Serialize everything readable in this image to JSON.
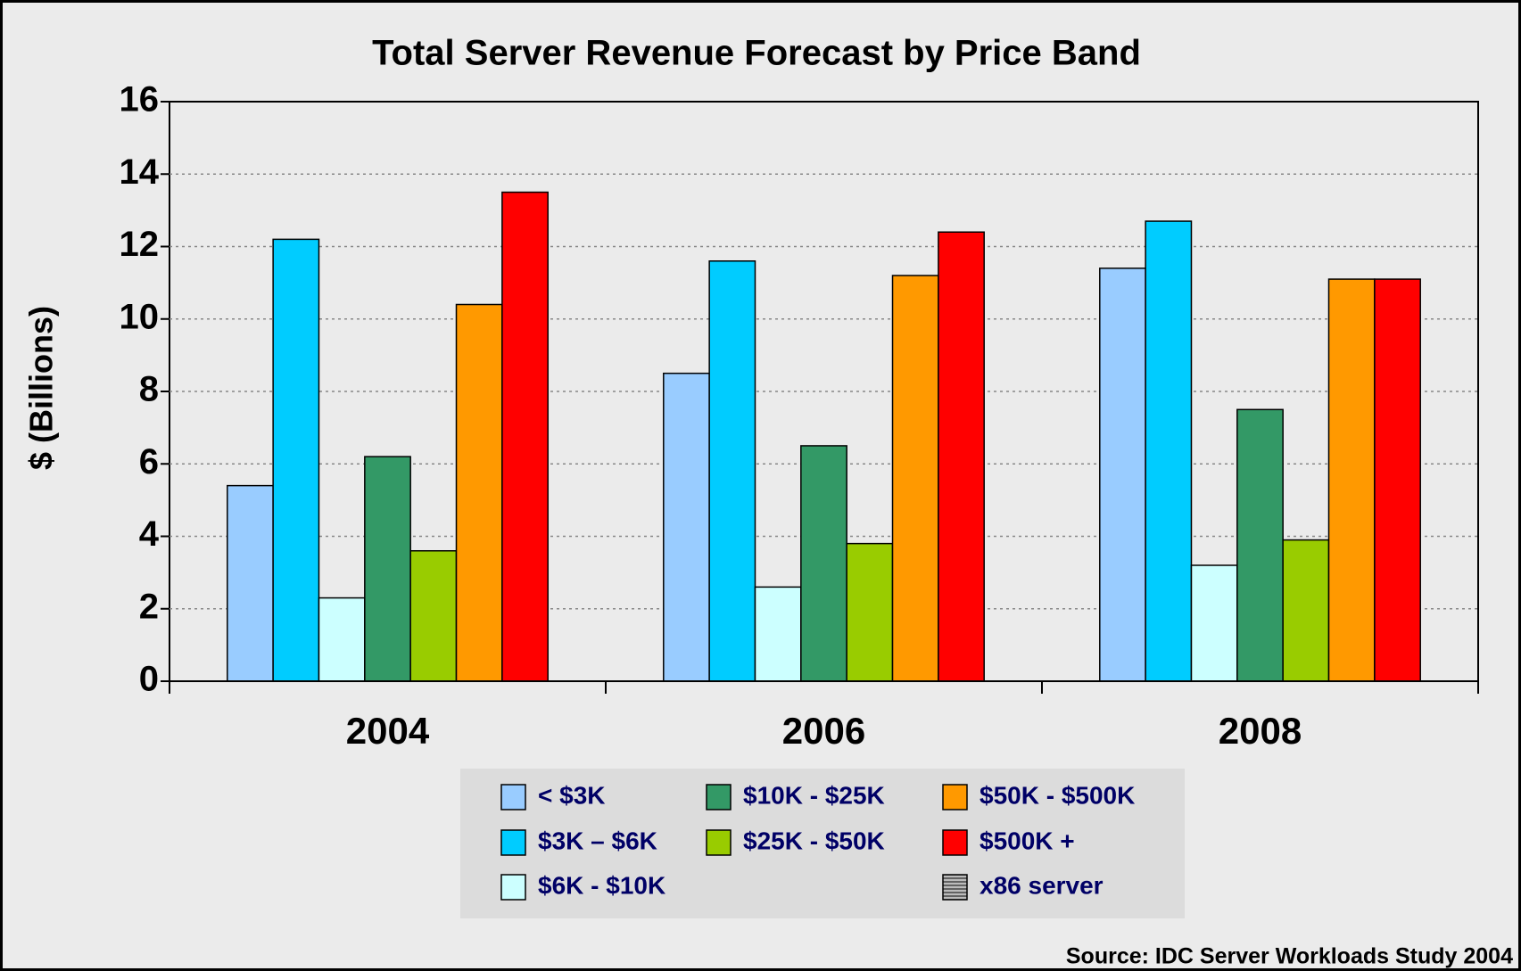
{
  "chart_data": {
    "type": "bar",
    "title": "Total Server Revenue Forecast by Price Band",
    "ylabel": "$ (Billions)",
    "source": "Source: IDC Server Workloads Study 2004",
    "categories": [
      "2004",
      "2006",
      "2008"
    ],
    "ylim": [
      0,
      16
    ],
    "yticks": [
      0,
      2,
      4,
      6,
      8,
      10,
      12,
      14,
      16
    ],
    "grid": true,
    "series": [
      {
        "name": "< $3K",
        "color": "#99ccff",
        "values": [
          5.4,
          8.5,
          11.4
        ]
      },
      {
        "name": "$3K – $6K",
        "color": "#00ccff",
        "values": [
          12.2,
          11.6,
          12.7
        ]
      },
      {
        "name": "$6K - $10K",
        "color": "#ccffff",
        "values": [
          2.3,
          2.6,
          3.2
        ]
      },
      {
        "name": "$10K - $25K",
        "color": "#339966",
        "values": [
          6.2,
          6.5,
          7.5
        ]
      },
      {
        "name": "$25K - $50K",
        "color": "#99cc00",
        "values": [
          3.6,
          3.8,
          3.9
        ]
      },
      {
        "name": "$50K - $500K",
        "color": "#ff9900",
        "values": [
          10.4,
          11.2,
          11.1
        ]
      },
      {
        "name": "$500K +",
        "color": "#ff0000",
        "values": [
          13.5,
          12.4,
          11.1
        ]
      },
      {
        "name": "x86 server",
        "color": "#808080",
        "values": [
          null,
          null,
          null
        ]
      }
    ]
  }
}
